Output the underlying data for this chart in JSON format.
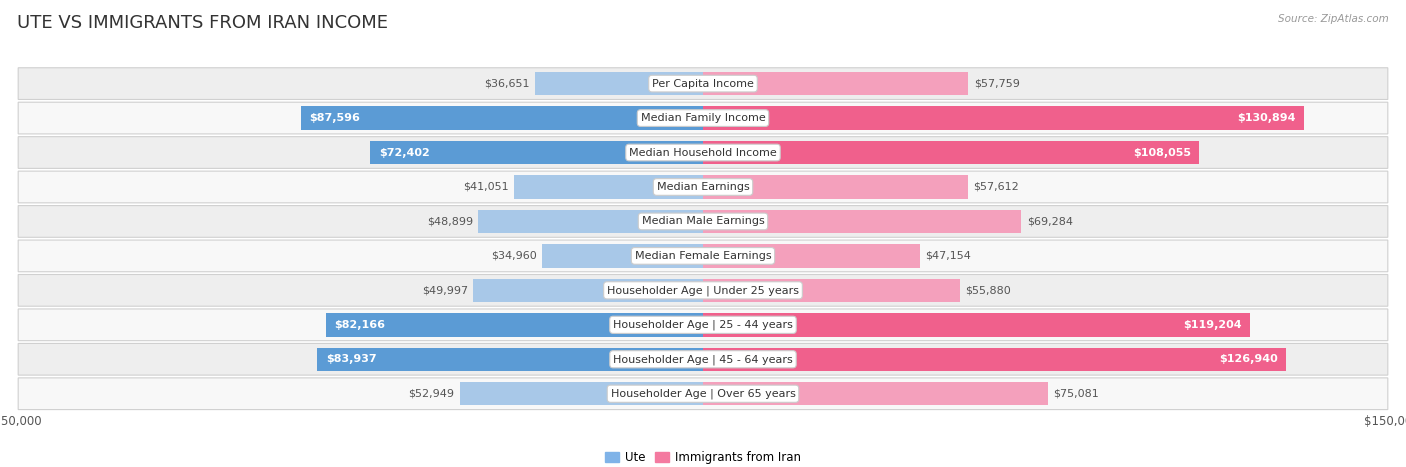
{
  "title": "UTE VS IMMIGRANTS FROM IRAN INCOME",
  "source": "Source: ZipAtlas.com",
  "categories": [
    "Per Capita Income",
    "Median Family Income",
    "Median Household Income",
    "Median Earnings",
    "Median Male Earnings",
    "Median Female Earnings",
    "Householder Age | Under 25 years",
    "Householder Age | 25 - 44 years",
    "Householder Age | 45 - 64 years",
    "Householder Age | Over 65 years"
  ],
  "ute_values": [
    36651,
    87596,
    72402,
    41051,
    48899,
    34960,
    49997,
    82166,
    83937,
    52949
  ],
  "iran_values": [
    57759,
    130894,
    108055,
    57612,
    69284,
    47154,
    55880,
    119204,
    126940,
    75081
  ],
  "ute_labels": [
    "$36,651",
    "$87,596",
    "$72,402",
    "$41,051",
    "$48,899",
    "$34,960",
    "$49,997",
    "$82,166",
    "$83,937",
    "$52,949"
  ],
  "iran_labels": [
    "$57,759",
    "$130,894",
    "$108,055",
    "$57,612",
    "$69,284",
    "$47,154",
    "$55,880",
    "$119,204",
    "$126,940",
    "$75,081"
  ],
  "ute_color_light": "#a8c8e8",
  "ute_color_dark": "#5b9bd5",
  "iran_color_light": "#f4a0bc",
  "iran_color_dark": "#f0608c",
  "axis_limit": 150000,
  "background_color": "#ffffff",
  "row_bg_even": "#eeeeee",
  "row_bg_odd": "#f8f8f8",
  "legend_ute_color": "#7fb3e8",
  "legend_iran_color": "#f47aa0",
  "title_fontsize": 13,
  "label_fontsize": 8,
  "category_fontsize": 8,
  "axis_label_fontsize": 8.5,
  "ute_large_threshold": 65000,
  "iran_large_threshold": 80000
}
